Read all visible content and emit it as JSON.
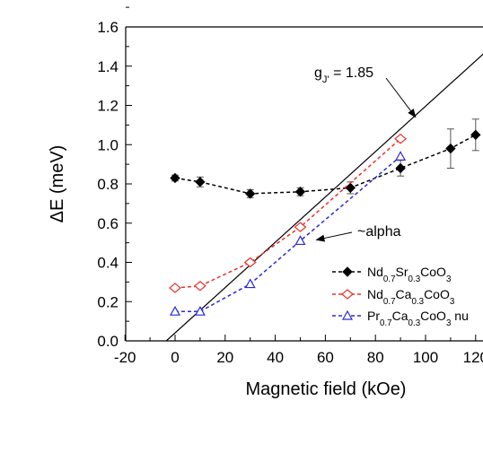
{
  "chart_data": {
    "type": "scatter",
    "xlabel": "Magnetic field (kOe)",
    "ylabel": "ΔE (meV)",
    "xlim": [
      -20,
      120
    ],
    "ylim": [
      0.0,
      1.6
    ],
    "x_ticks": [
      "-20",
      "0",
      "20",
      "40",
      "60",
      "80",
      "100",
      "120"
    ],
    "y_ticks": [
      "0.0",
      "0.2",
      "0.4",
      "0.6",
      "0.8",
      "1.0",
      "1.2",
      "1.4",
      "1.6"
    ],
    "grid": false,
    "series": [
      {
        "name_parts": [
          {
            "t": "Nd"
          },
          {
            "t": "0.7",
            "sub": true
          },
          {
            "t": "Sr"
          },
          {
            "t": "0.3",
            "sub": true
          },
          {
            "t": "CoO"
          },
          {
            "t": "3",
            "sub": true
          }
        ],
        "color": "#000000",
        "marker": "diamond-filled",
        "x": [
          0,
          10,
          30,
          50,
          70,
          90,
          110,
          120
        ],
        "y": [
          0.83,
          0.81,
          0.75,
          0.76,
          0.78,
          0.88,
          0.98,
          1.05
        ],
        "err": [
          0.015,
          0.025,
          0.02,
          0.02,
          0.03,
          0.04,
          0.1,
          0.08
        ]
      },
      {
        "name_parts": [
          {
            "t": "Nd"
          },
          {
            "t": "0.7",
            "sub": true
          },
          {
            "t": "Ca"
          },
          {
            "t": "0.3",
            "sub": true
          },
          {
            "t": "CoO"
          },
          {
            "t": "3",
            "sub": true
          }
        ],
        "color": "#e8302a",
        "marker": "diamond-open",
        "x": [
          0,
          10,
          30,
          50,
          90
        ],
        "y": [
          0.27,
          0.28,
          0.4,
          0.58,
          1.03
        ]
      },
      {
        "name_parts": [
          {
            "t": "Pr"
          },
          {
            "t": "0.7",
            "sub": true
          },
          {
            "t": "Ca"
          },
          {
            "t": "0.3",
            "sub": true
          },
          {
            "t": "CoO"
          },
          {
            "t": "3",
            "sub": true
          },
          {
            "t": " nu"
          }
        ],
        "color": "#2a2ad8",
        "marker": "triangle-open",
        "x": [
          0,
          10,
          30,
          50,
          90
        ],
        "y": [
          0.15,
          0.15,
          0.29,
          0.51,
          0.94
        ]
      }
    ],
    "reference_line": {
      "x1": -3.5,
      "y1": 0.0,
      "x2": 135,
      "y2": 1.6
    },
    "annotations": [
      {
        "text_parts": [
          {
            "t": "g"
          },
          {
            "t": "J'",
            "sub": true
          },
          {
            "t": " = 1.85"
          }
        ],
        "arrow_to": [
          96,
          1.14
        ]
      },
      {
        "text_parts": [
          {
            "t": "~alpha"
          }
        ],
        "arrow_to": [
          55,
          0.51
        ]
      }
    ]
  }
}
